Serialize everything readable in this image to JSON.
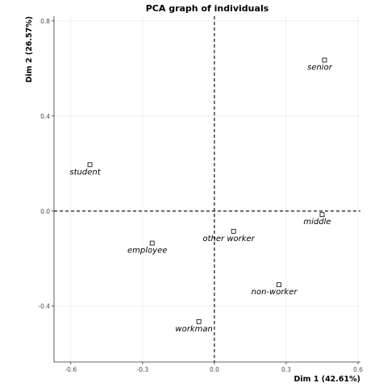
{
  "chart_data": {
    "type": "scatter",
    "title": "PCA graph of individuals",
    "xlabel": "Dim 1 (42.61%)",
    "ylabel": "Dim 2 (26.57%)",
    "xlim": [
      -0.67,
      0.61
    ],
    "ylim": [
      -0.635,
      0.82
    ],
    "xticks": [
      -0.6,
      -0.3,
      0.0,
      0.3,
      0.6
    ],
    "xtick_labels": [
      "-0.6",
      "-0.3",
      "0.0",
      "0.3",
      "0.6"
    ],
    "yticks": [
      -0.4,
      0.0,
      0.4,
      0.8
    ],
    "ytick_labels": [
      "-0.4",
      "0.0",
      "0.4",
      "0.8"
    ],
    "grid": true,
    "reference_lines": {
      "x": 0,
      "y": 0
    },
    "points": [
      {
        "label": "senior",
        "x": 0.46,
        "y": 0.635
      },
      {
        "label": "student",
        "x": -0.52,
        "y": 0.195
      },
      {
        "label": "middle",
        "x": 0.45,
        "y": -0.015
      },
      {
        "label": "other worker",
        "x": 0.08,
        "y": -0.085
      },
      {
        "label": "employee",
        "x": -0.26,
        "y": -0.135
      },
      {
        "label": "non-worker",
        "x": 0.27,
        "y": -0.31
      },
      {
        "label": "workman",
        "x": -0.065,
        "y": -0.465
      }
    ]
  }
}
